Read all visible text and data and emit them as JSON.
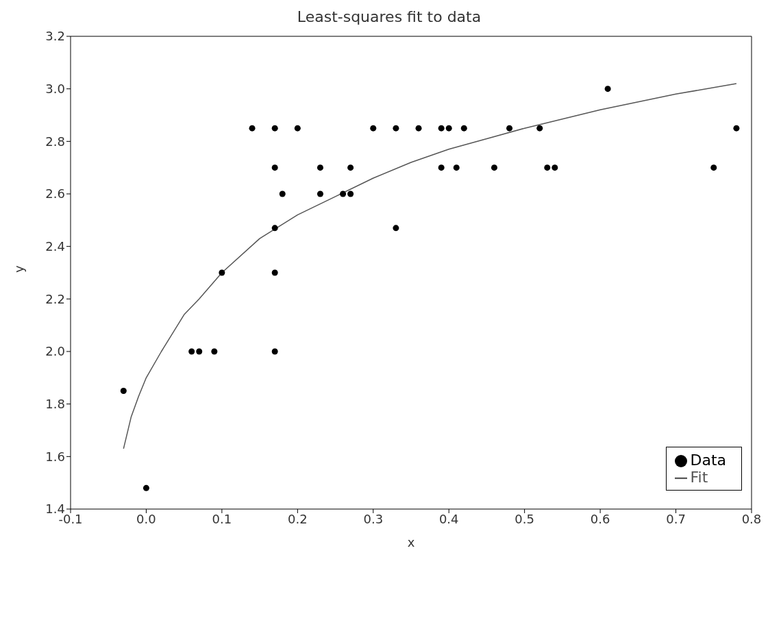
{
  "chart_data": {
    "type": "scatter",
    "title": "Least-squares fit to data",
    "xlabel": "x",
    "ylabel": "y",
    "xlim": [
      -0.1,
      0.8
    ],
    "xticks": [
      -0.1,
      {
        "value": 0,
        "label": "0.0"
      },
      0.1,
      0.2,
      0.3,
      0.4,
      0.5,
      0.6,
      0.7,
      0.8
    ],
    "ylim": [
      1.4,
      3.2
    ],
    "yticks": [
      1.4,
      1.6,
      1.8,
      {
        "value": 2,
        "label": "2.0"
      },
      2.2,
      2.4,
      2.6,
      2.8,
      {
        "value": 3,
        "label": "3.0"
      },
      3.2
    ],
    "grid": false,
    "legend": "bottom right",
    "series": [
      {
        "name": "Data",
        "marker": "circle",
        "color": "#000000",
        "x": [
          -0.03,
          0.0,
          0.06,
          0.07,
          0.09,
          0.1,
          0.14,
          0.17,
          0.17,
          0.17,
          0.17,
          0.17,
          0.18,
          0.2,
          0.23,
          0.23,
          0.26,
          0.27,
          0.27,
          0.3,
          0.33,
          0.33,
          0.36,
          0.39,
          0.39,
          0.4,
          0.41,
          0.42,
          0.46,
          0.48,
          0.52,
          0.53,
          0.54,
          0.61,
          0.75,
          0.78
        ],
        "values": [
          1.85,
          1.48,
          2.0,
          2.0,
          2.0,
          2.3,
          2.85,
          2.85,
          2.7,
          2.47,
          2.3,
          2.0,
          2.6,
          2.85,
          2.7,
          2.6,
          2.6,
          2.7,
          2.6,
          2.85,
          2.85,
          2.47,
          2.85,
          2.85,
          2.7,
          2.85,
          2.7,
          2.85,
          2.7,
          2.85,
          2.85,
          2.7,
          2.7,
          3.0,
          2.7,
          2.85
        ]
      },
      {
        "name": "Fit",
        "type": "line",
        "marker": "none",
        "color": "#555555",
        "line_style": "solid",
        "x": [
          -0.03,
          -0.02,
          -0.01,
          0.0,
          0.02,
          0.05,
          0.07,
          0.1,
          0.15,
          0.2,
          0.25,
          0.3,
          0.35,
          0.4,
          0.45,
          0.5,
          0.6,
          0.7,
          0.78
        ],
        "values": [
          1.63,
          1.75,
          1.83,
          1.9,
          2.0,
          2.14,
          2.2,
          2.3,
          2.43,
          2.52,
          2.59,
          2.66,
          2.72,
          2.77,
          2.81,
          2.85,
          2.92,
          2.98,
          3.02
        ]
      }
    ]
  }
}
